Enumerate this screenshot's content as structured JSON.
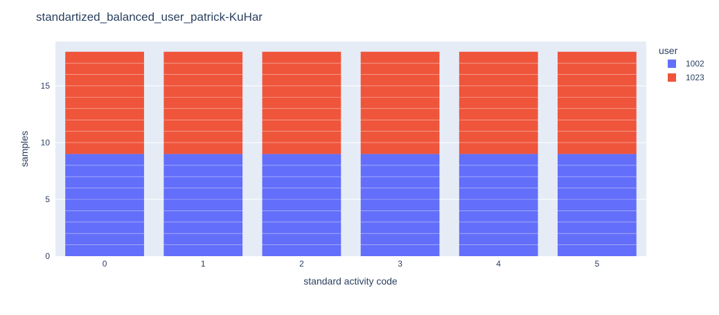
{
  "chart_data": {
    "type": "bar",
    "barmode": "stack",
    "title": "standartized_balanced_user_patrick-KuHar",
    "xlabel": "standard activity code",
    "ylabel": "samples",
    "categories": [
      "0",
      "1",
      "2",
      "3",
      "4",
      "5"
    ],
    "ylim": [
      0,
      18.9
    ],
    "yticks": [
      0,
      5,
      10,
      15
    ],
    "grid": true,
    "legend": {
      "title": "user",
      "placement": "top-right"
    },
    "series": [
      {
        "name": "1002",
        "values": [
          9,
          9,
          9,
          9,
          9,
          9
        ],
        "color": "#636efa"
      },
      {
        "name": "1023",
        "values": [
          9,
          9,
          9,
          9,
          9,
          9
        ],
        "color": "#ef553b"
      }
    ],
    "colors": {
      "plot_background": "#e5ecf6",
      "grid": "#ffffff",
      "text": "#2a3f5f",
      "title": "#2a3f5f"
    }
  }
}
